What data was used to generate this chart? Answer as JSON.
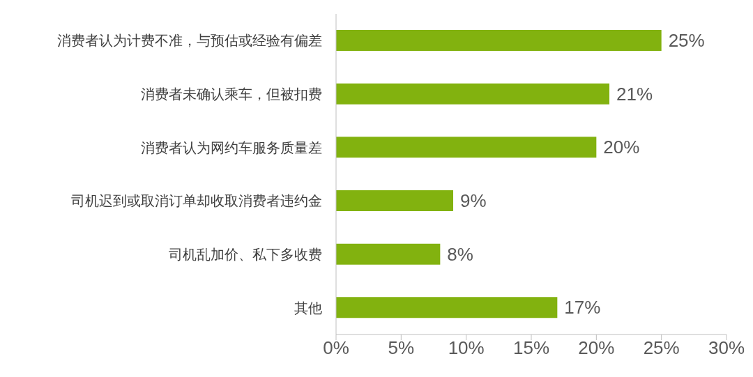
{
  "chart_data": {
    "type": "bar",
    "orientation": "horizontal",
    "categories": [
      "消费者认为计费不准，与预估或经验有偏差",
      "消费者未确认乘车，但被扣费",
      "消费者认为网约车服务质量差",
      "司机迟到或取消订单却收取消费者违约金",
      "司机乱加价、私下多收费",
      "其他"
    ],
    "values": [
      25,
      21,
      20,
      9,
      8,
      17
    ],
    "value_labels": [
      "25%",
      "21%",
      "20%",
      "9%",
      "8%",
      "17%"
    ],
    "color": "#82b20f",
    "xlim": [
      0,
      30
    ],
    "xticks": [
      {
        "value": 0,
        "label": "0%"
      },
      {
        "value": 5,
        "label": "5%"
      },
      {
        "value": 10,
        "label": "10%"
      },
      {
        "value": 15,
        "label": "15%"
      },
      {
        "value": 20,
        "label": "20%"
      },
      {
        "value": 25,
        "label": "25%"
      },
      {
        "value": 30,
        "label": "30%"
      }
    ],
    "grid": false,
    "legend": false
  }
}
